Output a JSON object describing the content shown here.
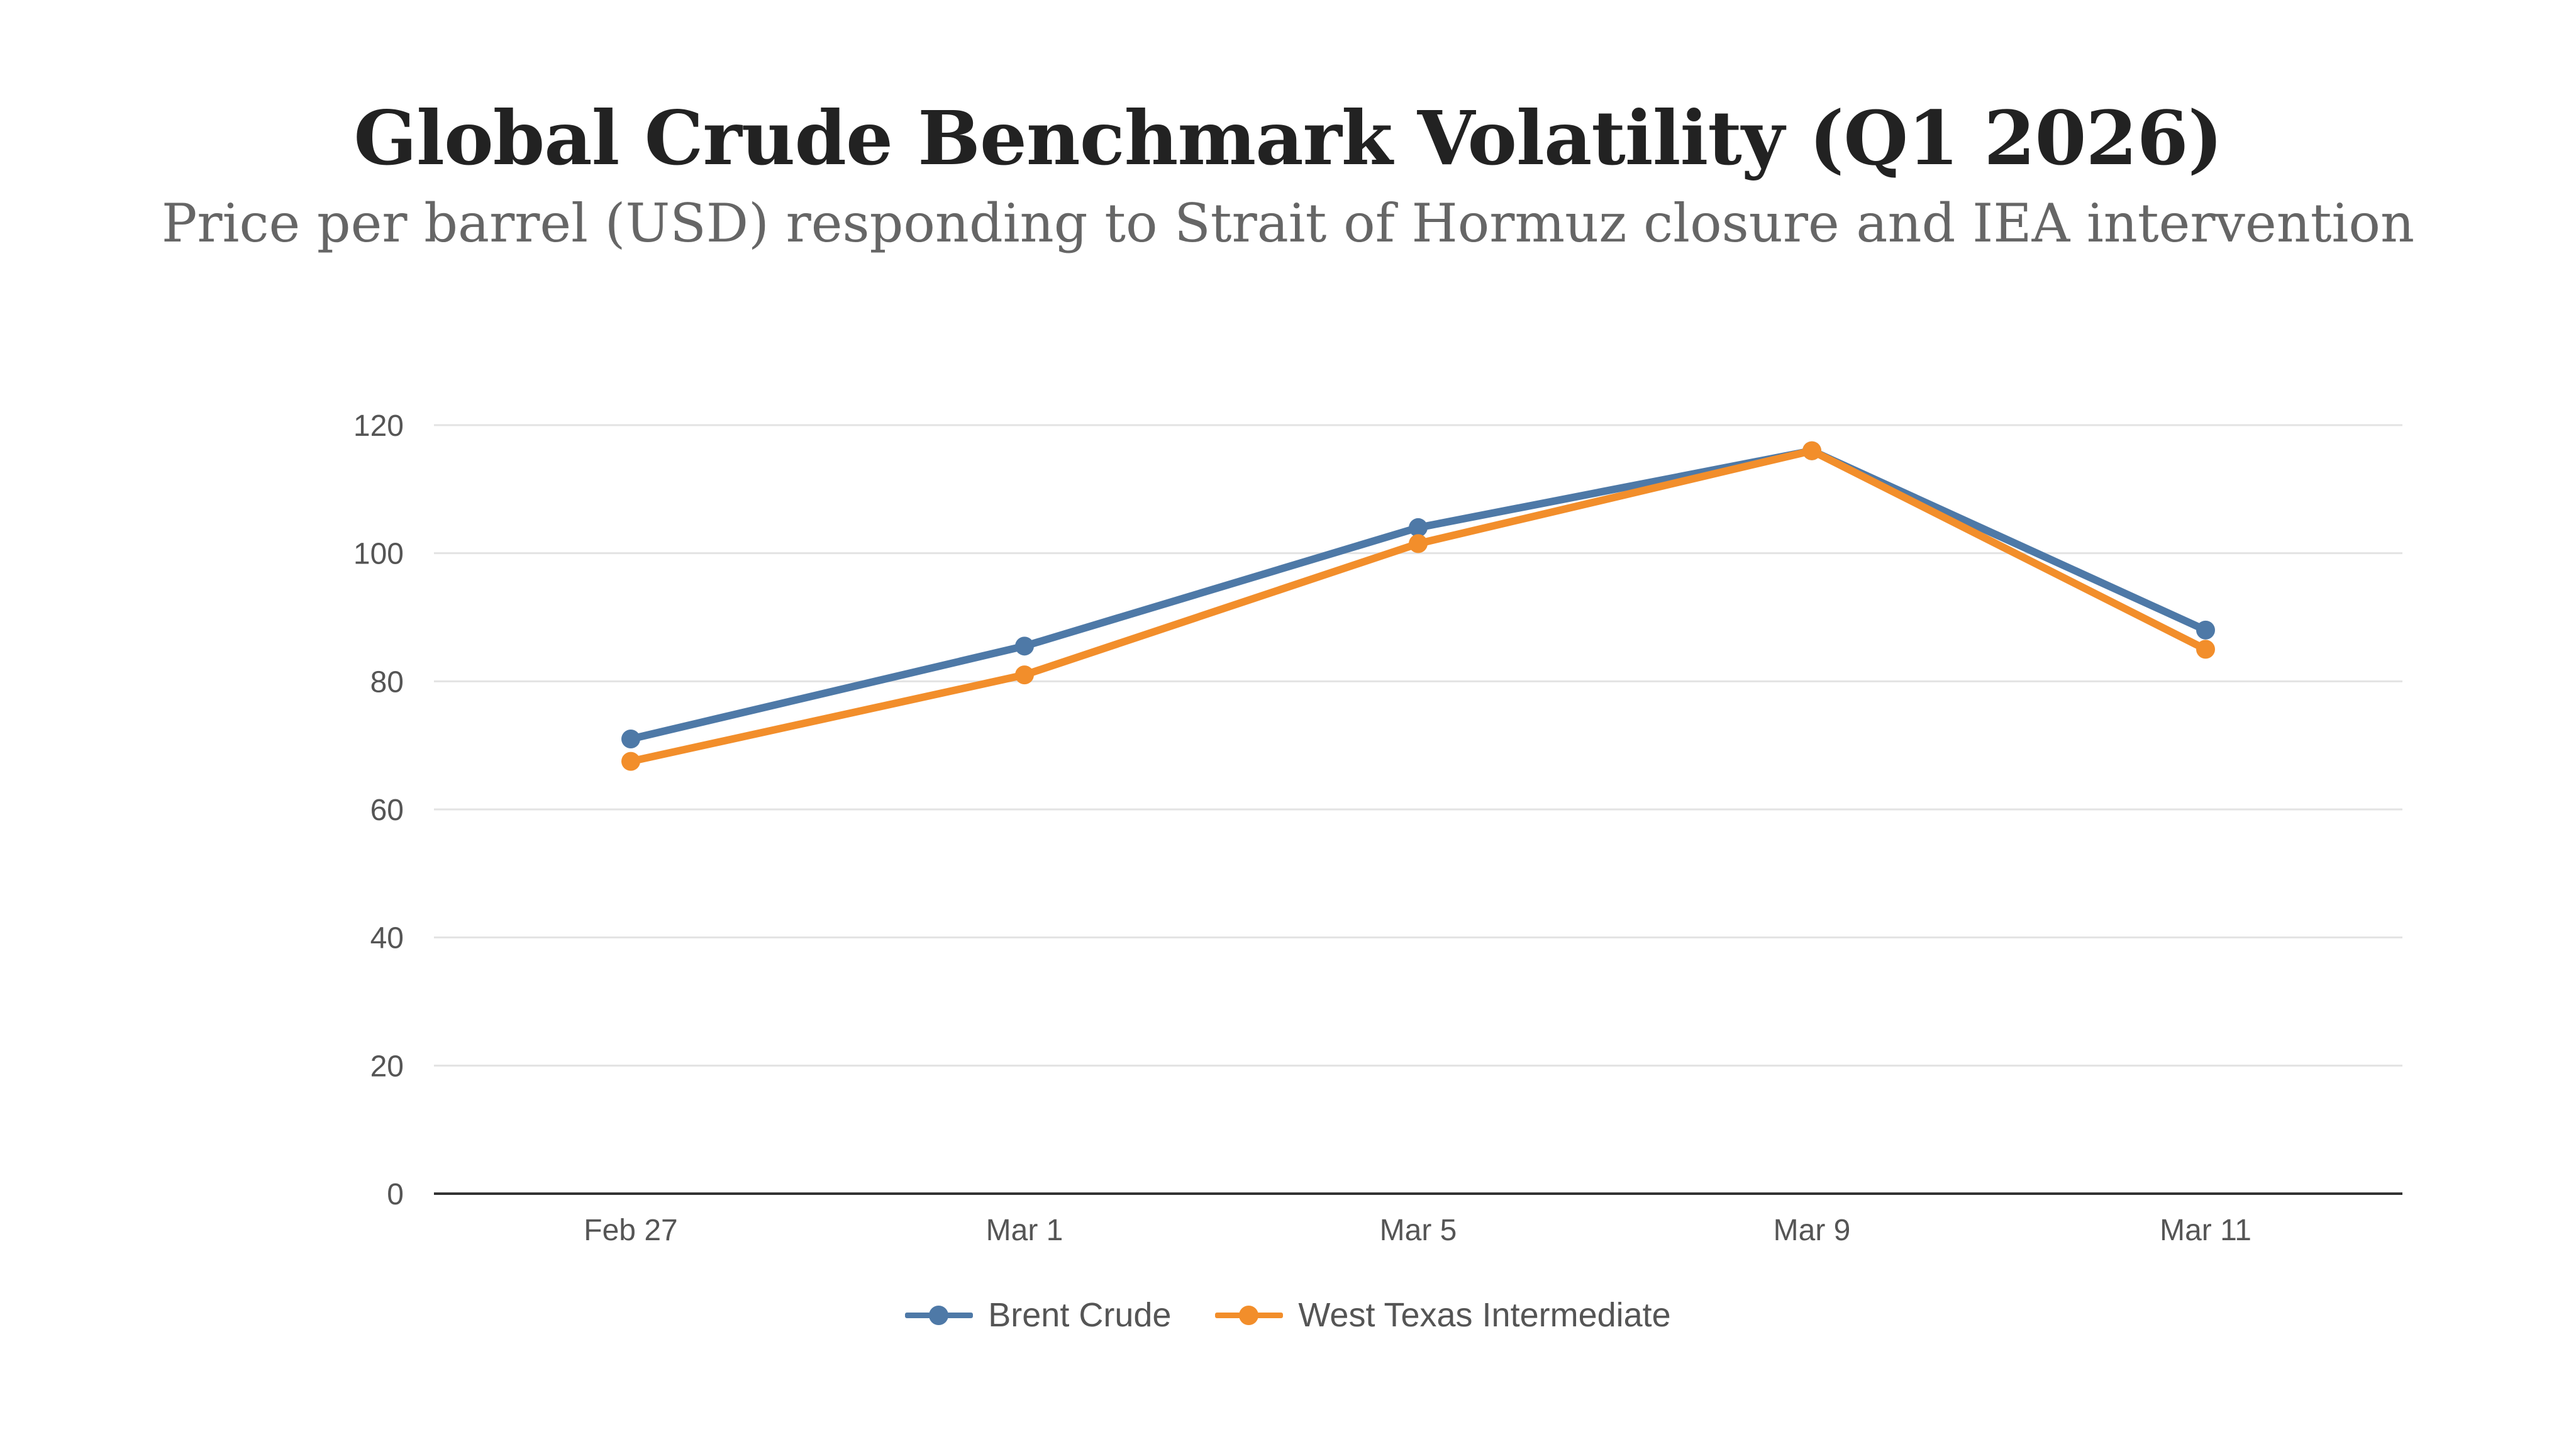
{
  "chart_data": {
    "type": "line",
    "title": "Global Crude Benchmark Volatility (Q1 2026)",
    "subtitle": "Price per barrel (USD) responding to Strait of Hormuz closure and IEA intervention",
    "xlabel": "",
    "ylabel": "",
    "categories": [
      "Feb 27",
      "Mar 1",
      "Mar 5",
      "Mar 9",
      "Mar 11"
    ],
    "ylim": [
      0,
      120
    ],
    "yticks": [
      0,
      20,
      40,
      60,
      80,
      100,
      120
    ],
    "grid": true,
    "legend_position": "bottom-center",
    "series": [
      {
        "name": "Brent Crude",
        "color": "#4e79a7",
        "values": [
          71,
          85.5,
          104,
          116,
          88
        ]
      },
      {
        "name": "West Texas Intermediate",
        "color": "#f28e2b",
        "values": [
          67.5,
          81,
          101.5,
          116,
          85
        ]
      }
    ]
  }
}
